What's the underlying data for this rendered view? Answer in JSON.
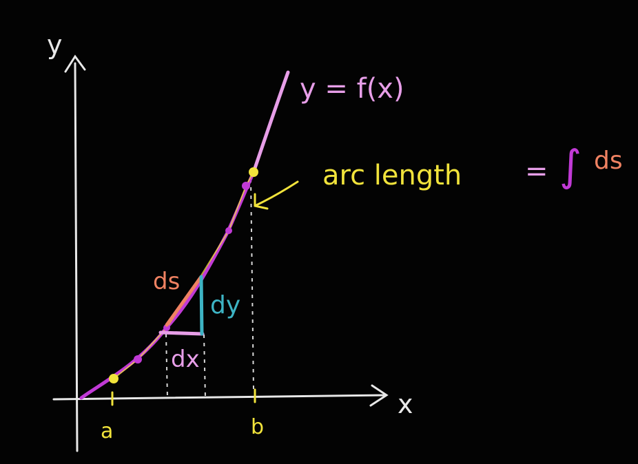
{
  "labels": {
    "y_axis": "y",
    "x_axis": "x",
    "a": "a",
    "b": "b",
    "curve": "y = f(x)",
    "arc_length": "arc length",
    "equals": "=",
    "integral": "∫",
    "ds_integral": "ds",
    "ds": "ds",
    "dy": "dy",
    "dx": "dx"
  },
  "colors": {
    "background": "#030303",
    "axes": "#e8e8e8",
    "curve": "#c13ad6",
    "curve_highlight": "#e79ee8",
    "points": "#f1e33b",
    "ds_segment": "#f08262",
    "dy_segment": "#3db4c4",
    "dx_segment": "#e79ee8",
    "arrow": "#f1e33b"
  },
  "icons": {
    "y_axis_arrow": "arrowhead-up-icon",
    "x_axis_arrow": "arrowhead-right-icon",
    "pointer_arrow": "arrow-left-down-icon"
  }
}
